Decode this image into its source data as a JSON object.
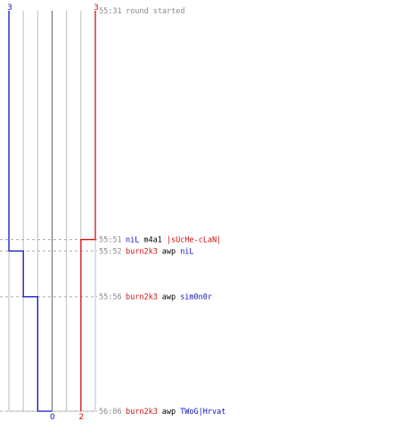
{
  "chart_data": {
    "type": "line",
    "title": "",
    "xlabel": "",
    "ylabel": "",
    "grid": true,
    "time_range": [
      "55:31",
      "56:06"
    ],
    "players_range": [
      0,
      3
    ],
    "colors": {
      "team_a": "#1010c0",
      "team_b": "#d01010",
      "timestamp": "#8a8a8a",
      "event": "#000000",
      "grid": "#bdbdbd",
      "center_line": "#777777",
      "dash": "#aaaaaa"
    },
    "series": [
      {
        "team": "team_a",
        "start_count": "3",
        "end_count": "0",
        "points": [
          {
            "time": "55:31",
            "alive": 3
          },
          {
            "time": "55:52",
            "alive": 2
          },
          {
            "time": "55:56",
            "alive": 1
          },
          {
            "time": "56:06",
            "alive": 0
          }
        ]
      },
      {
        "team": "team_b",
        "start_count": "3",
        "end_count": "2",
        "points": [
          {
            "time": "55:31",
            "alive": 3
          },
          {
            "time": "55:51",
            "alive": 2
          },
          {
            "time": "56:06",
            "alive": 2
          }
        ]
      }
    ],
    "events": [
      {
        "time": "55:31",
        "dashed": false,
        "segments": [
          {
            "text": "round started",
            "team": "timestamp"
          }
        ]
      },
      {
        "time": "55:51",
        "dashed": true,
        "segments": [
          {
            "text": "niL",
            "team": "team_a"
          },
          {
            "text": " ",
            "team": "event"
          },
          {
            "text": "m4a1",
            "team": "event"
          },
          {
            "text": " ",
            "team": "event"
          },
          {
            "text": "|sUcHe-cLaN|",
            "team": "team_b"
          }
        ]
      },
      {
        "time": "55:52",
        "dashed": true,
        "segments": [
          {
            "text": "burn2k3",
            "team": "team_b"
          },
          {
            "text": " ",
            "team": "event"
          },
          {
            "text": "awp",
            "team": "event"
          },
          {
            "text": " ",
            "team": "event"
          },
          {
            "text": "niL",
            "team": "team_a"
          }
        ]
      },
      {
        "time": "55:56",
        "dashed": true,
        "segments": [
          {
            "text": "burn2k3",
            "team": "team_b"
          },
          {
            "text": " ",
            "team": "event"
          },
          {
            "text": "awp",
            "team": "event"
          },
          {
            "text": " ",
            "team": "event"
          },
          {
            "text": "sim0n0r",
            "team": "team_a"
          }
        ]
      },
      {
        "time": "56:06",
        "dashed": true,
        "segments": [
          {
            "text": "burn2k3",
            "team": "team_b"
          },
          {
            "text": " ",
            "team": "event"
          },
          {
            "text": "awp",
            "team": "event"
          },
          {
            "text": " ",
            "team": "event"
          },
          {
            "text": "TWoG|Hrvat",
            "team": "team_a"
          }
        ]
      }
    ]
  }
}
